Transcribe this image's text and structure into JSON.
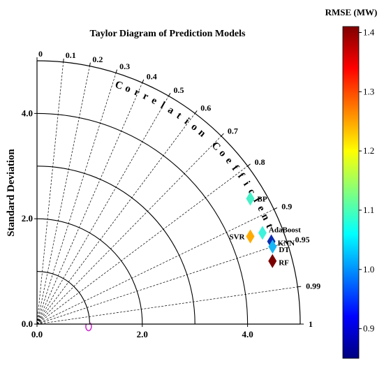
{
  "chart_data": {
    "type": "scatter",
    "subtype": "taylor-diagram",
    "title": "Taylor Diagram of Prediction Models",
    "ylabel": "Standard Deviation",
    "arc_label": "Correlation Coefficient",
    "std_range": [
      0,
      5
    ],
    "std_ticks": [
      {
        "value": 0,
        "label": "0.0"
      },
      {
        "value": 2,
        "label": "2.0"
      },
      {
        "value": 4,
        "label": "4.0"
      }
    ],
    "std_arcs": [
      1,
      2,
      3,
      4,
      5
    ],
    "correlation_ticks": [
      {
        "value": 0,
        "label": "0"
      },
      {
        "value": 0.1,
        "label": "0.1"
      },
      {
        "value": 0.2,
        "label": "0.2"
      },
      {
        "value": 0.3,
        "label": "0.3"
      },
      {
        "value": 0.4,
        "label": "0.4"
      },
      {
        "value": 0.5,
        "label": "0.5"
      },
      {
        "value": 0.6,
        "label": "0.6"
      },
      {
        "value": 0.7,
        "label": "0.7"
      },
      {
        "value": 0.8,
        "label": "0.8"
      },
      {
        "value": 0.9,
        "label": "0.9"
      },
      {
        "value": 0.95,
        "label": "0.95"
      },
      {
        "value": 0.99,
        "label": "0.99"
      },
      {
        "value": 1,
        "label": "1"
      }
    ],
    "reference_std": 1.0,
    "colorbar": {
      "title": "RMSE (MW)",
      "range": [
        0.85,
        1.41
      ],
      "ticks": [
        "0.9",
        "1.0",
        "1.1",
        "1.2",
        "1.3",
        "1.4"
      ],
      "colormap": "jet"
    },
    "series": [
      {
        "name": "BP",
        "correlation": 0.862,
        "std": 4.7,
        "rmse": 1.08,
        "color": "#47f0c8"
      },
      {
        "name": "AdaBoost",
        "correlation": 0.927,
        "std": 4.62,
        "rmse": 1.05,
        "color": "#3ff2dc"
      },
      {
        "name": "SVR",
        "correlation": 0.925,
        "std": 4.38,
        "rmse": 1.25,
        "color": "#ffab00"
      },
      {
        "name": "KNN",
        "correlation": 0.943,
        "std": 4.72,
        "rmse": 0.87,
        "color": "#0a2bb0"
      },
      {
        "name": "DT",
        "correlation": 0.95,
        "std": 4.71,
        "rmse": 1.0,
        "color": "#17b7f5"
      },
      {
        "name": "RF",
        "correlation": 0.966,
        "std": 4.63,
        "rmse": 1.41,
        "color": "#7a0000"
      }
    ]
  }
}
